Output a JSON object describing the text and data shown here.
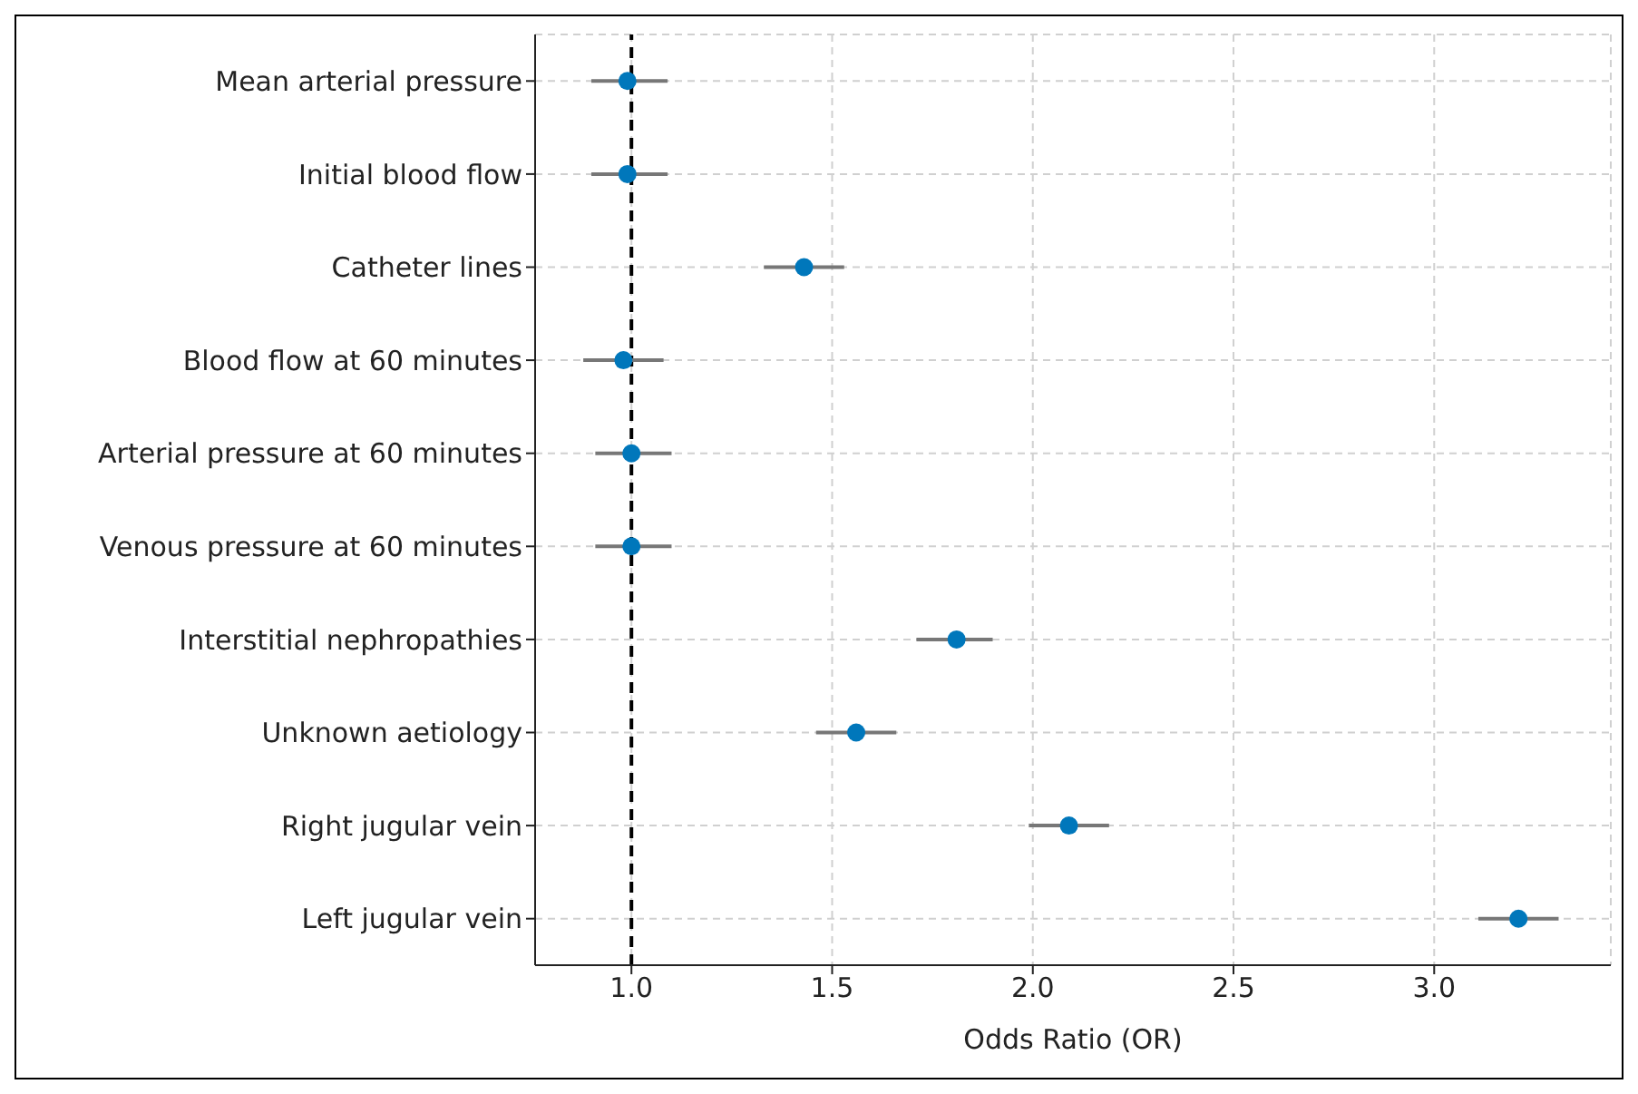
{
  "chart_data": {
    "type": "scatter",
    "xlabel": "Odds Ratio (OR)",
    "categories": [
      "Mean arterial pressure",
      "Initial blood flow",
      "Catheter lines",
      "Blood flow at 60 minutes",
      "Arterial pressure at 60 minutes",
      "Venous pressure at 60 minutes",
      "Interstitial nephropathies",
      "Unknown aetiology",
      "Right jugular vein",
      "Left jugular vein"
    ],
    "orientation": "horizontal",
    "series": [
      {
        "color": "#0077bb",
        "values": [
          0.99,
          0.99,
          1.43,
          0.98,
          1.0,
          1.0,
          1.81,
          1.56,
          2.09,
          3.21
        ],
        "errors": [
          [
            0.9,
            1.09
          ],
          [
            0.9,
            1.09
          ],
          [
            1.33,
            1.53
          ],
          [
            0.88,
            1.08
          ],
          [
            0.91,
            1.1
          ],
          [
            0.91,
            1.1
          ],
          [
            1.71,
            1.9
          ],
          [
            1.46,
            1.66
          ],
          [
            1.99,
            2.19
          ],
          [
            3.11,
            3.31
          ]
        ]
      }
    ],
    "xlim": [
      0.76,
      3.44
    ],
    "xticks": [
      {
        "value": 1,
        "label": "1.0"
      },
      {
        "value": 1.5,
        "label": "1.5"
      },
      {
        "value": 2,
        "label": "2.0"
      },
      {
        "value": 2.5,
        "label": "2.5"
      },
      {
        "value": 3,
        "label": "3.0"
      }
    ],
    "ref_lines": [
      {
        "axis": "x",
        "value": 1,
        "color": "#000000",
        "line_style": "dashed"
      }
    ],
    "grid": true,
    "marker": "circle"
  }
}
